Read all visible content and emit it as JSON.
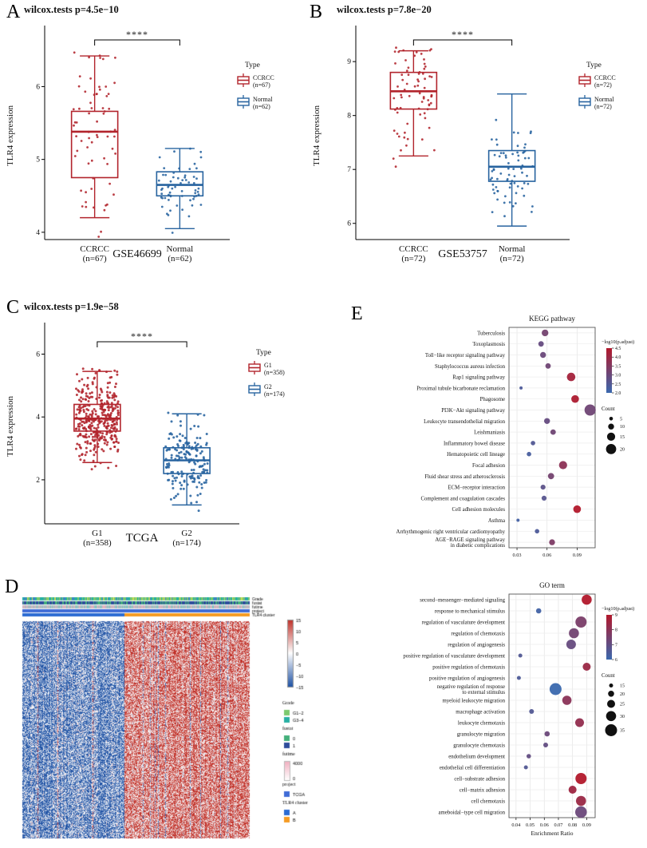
{
  "labels": {
    "A": "A",
    "B": "B",
    "C": "C",
    "D": "D",
    "E": "E"
  },
  "chart_data": [
    {
      "panel": "A",
      "type": "boxplot",
      "title": "wilcox.tests p=4.5e−10",
      "dataset": "GSE46699",
      "ylabel": "TLR4 expression",
      "ylim": [
        3.9,
        6.75
      ],
      "yticks": [
        4,
        5,
        6
      ],
      "significance": "****",
      "legend_title": "Type",
      "groups": [
        {
          "label": "CCRCC",
          "n_label": "(n=67)",
          "count": 67,
          "color": "#b2242c",
          "stats": {
            "low": 4.2,
            "q1": 4.75,
            "median": 5.38,
            "q3": 5.66,
            "high": 6.42
          }
        },
        {
          "label": "Normal",
          "n_label": "(n=62)",
          "count": 62,
          "color": "#27639f",
          "stats": {
            "low": 4.05,
            "q1": 4.5,
            "median": 4.65,
            "q3": 4.83,
            "high": 5.15
          }
        }
      ]
    },
    {
      "panel": "B",
      "type": "boxplot",
      "title": "wilcox.tests p=7.8e−20",
      "dataset": "GSE53757",
      "ylabel": "TLR4 expression",
      "ylim": [
        5.7,
        9.55
      ],
      "yticks": [
        6,
        7,
        8,
        9
      ],
      "significance": "****",
      "legend_title": "Type",
      "groups": [
        {
          "label": "CCRCC",
          "n_label": "(n=72)",
          "count": 72,
          "color": "#b2242c",
          "stats": {
            "low": 7.25,
            "q1": 8.12,
            "median": 8.45,
            "q3": 8.8,
            "high": 9.2
          }
        },
        {
          "label": "Normal",
          "n_label": "(n=72)",
          "count": 72,
          "color": "#27639f",
          "stats": {
            "low": 5.95,
            "q1": 6.78,
            "median": 7.05,
            "q3": 7.35,
            "high": 8.4
          }
        }
      ]
    },
    {
      "panel": "C",
      "type": "boxplot",
      "title": "wilcox.tests p=1.9e−58",
      "dataset": "TCGA",
      "ylabel": "TLR4 expression",
      "ylim": [
        0.6,
        6.8
      ],
      "yticks": [
        2,
        4,
        6
      ],
      "significance": "****",
      "legend_title": "Type",
      "groups": [
        {
          "label": "G1",
          "n_label": "(n=358)",
          "count": 358,
          "color": "#b2242c",
          "stats": {
            "low": 2.55,
            "q1": 3.55,
            "median": 3.95,
            "q3": 4.4,
            "high": 5.45
          }
        },
        {
          "label": "G2",
          "n_label": "(n=174)",
          "count": 174,
          "color": "#27639f",
          "stats": {
            "low": 1.2,
            "q1": 2.2,
            "median": 2.62,
            "q3": 3.02,
            "high": 4.1
          }
        }
      ]
    },
    {
      "panel": "D",
      "type": "heatmap",
      "rows": 272,
      "cols": 285,
      "cluster_split": 0.45,
      "value_range": [
        -15,
        15
      ],
      "colorbar_ticks": [
        "15",
        "10",
        "5",
        "0",
        "−5",
        "−10",
        "−15"
      ],
      "annotation_rows": [
        "Grade",
        "fustat",
        "futime",
        "project",
        "TLR4 cluster"
      ],
      "cluster_colors": {
        "low": "#2053a5",
        "mid": "#ffffff",
        "high": "#c03028"
      },
      "legends": [
        {
          "title": "Grade",
          "entries": [
            {
              "label": "G1−2",
              "color": "#7cc96e"
            },
            {
              "label": "G3−4",
              "color": "#29b0a4"
            }
          ]
        },
        {
          "title": "fustat",
          "entries": [
            {
              "label": "0",
              "color": "#44b07b"
            },
            {
              "label": "1",
              "color": "#2e4c9b"
            }
          ]
        },
        {
          "title": "futime",
          "gradient": [
            "#f2aebf",
            "#ffffff"
          ],
          "gradient_ticks": [
            "4000",
            "0"
          ]
        },
        {
          "title": "project",
          "entries": [
            {
              "label": "TCGA",
              "color": "#3f6bd6"
            }
          ]
        },
        {
          "title": "TLR4 cluster",
          "entries": [
            {
              "label": "A",
              "color": "#2b6bd3"
            },
            {
              "label": "B",
              "color": "#f59b23"
            }
          ]
        }
      ]
    },
    {
      "panel": "E",
      "type": "scatter",
      "title": "KEGG pathway",
      "xlabel": "",
      "xlim": [
        0.022,
        0.108
      ],
      "xticks": [
        "0.03",
        "0.06",
        "0.09"
      ],
      "color_legend": {
        "title": "−log10(p.adjust)",
        "min": 2,
        "max": 4.5,
        "ticks": [
          "4.5",
          "4.0",
          "3.5",
          "3.0",
          "2.5",
          "2.0"
        ]
      },
      "size_legend": {
        "title": "Count",
        "ticks": [
          5,
          10,
          15,
          20
        ],
        "min": 4,
        "max": 22
      },
      "items": [
        {
          "label": "Tuberculosis",
          "x": 0.058,
          "padj": 3.2,
          "count": 12
        },
        {
          "label": "Toxoplasmosis",
          "x": 0.054,
          "padj": 2.9,
          "count": 9
        },
        {
          "label": "Toll−like receptor signaling pathway",
          "x": 0.056,
          "padj": 3.0,
          "count": 10
        },
        {
          "label": "Staphylococcus aureus infection",
          "x": 0.061,
          "padj": 3.1,
          "count": 9
        },
        {
          "label": "Rap1 signaling pathway",
          "x": 0.084,
          "padj": 4.2,
          "count": 16
        },
        {
          "label": "Proximal tubule bicarbonate reclamation",
          "x": 0.034,
          "padj": 2.4,
          "count": 4
        },
        {
          "label": "Phagosome",
          "x": 0.088,
          "padj": 4.4,
          "count": 14
        },
        {
          "label": "PI3K−Akt signaling pathway",
          "x": 0.103,
          "padj": 3.1,
          "count": 22
        },
        {
          "label": "Leukocyte transendothelial migration",
          "x": 0.06,
          "padj": 2.9,
          "count": 10
        },
        {
          "label": "Leishmaniasis",
          "x": 0.066,
          "padj": 3.1,
          "count": 9
        },
        {
          "label": "Inflammatory bowel disease",
          "x": 0.046,
          "padj": 2.5,
          "count": 7
        },
        {
          "label": "Hematopoietic cell lineage",
          "x": 0.042,
          "padj": 2.3,
          "count": 7
        },
        {
          "label": "Focal adhesion",
          "x": 0.076,
          "padj": 3.7,
          "count": 15
        },
        {
          "label": "Fluid shear stress and atherosclerosis",
          "x": 0.064,
          "padj": 3.2,
          "count": 11
        },
        {
          "label": "ECM−receptor interaction",
          "x": 0.056,
          "padj": 2.7,
          "count": 8
        },
        {
          "label": "Complement and coagulation cascades",
          "x": 0.057,
          "padj": 2.6,
          "count": 8
        },
        {
          "label": "Cell adhesion molecules",
          "x": 0.09,
          "padj": 4.5,
          "count": 14
        },
        {
          "label": "Asthma",
          "x": 0.031,
          "padj": 2.2,
          "count": 4
        },
        {
          "label": "Arrhythmogenic right ventricular cardiomyopathy",
          "x": 0.05,
          "padj": 2.4,
          "count": 7
        },
        {
          "label": "AGE−RAGE signaling pathway|in diabetic complications",
          "x": 0.065,
          "padj": 3.4,
          "count": 10
        }
      ]
    },
    {
      "panel": "E",
      "type": "scatter",
      "title": "GO term",
      "xlabel": "Enrichment Ratio",
      "xlim": [
        0.035,
        0.096
      ],
      "xticks": [
        "0.04",
        "0.05",
        "0.06",
        "0.07",
        "0.08",
        "0.09"
      ],
      "color_legend": {
        "title": "−log10(p.adjust)",
        "min": 6,
        "max": 9,
        "ticks": [
          "9",
          "8",
          "7",
          "6"
        ]
      },
      "size_legend": {
        "title": "Count",
        "ticks": [
          15,
          20,
          25,
          30,
          35
        ],
        "min": 15,
        "max": 35
      },
      "items": [
        {
          "label": "second−messenger−mediated signaling",
          "x": 0.09,
          "padj": 9.0,
          "count": 30
        },
        {
          "label": "response to mechanical stimulus",
          "x": 0.056,
          "padj": 6.2,
          "count": 18
        },
        {
          "label": "regulation of vasculature development",
          "x": 0.086,
          "padj": 7.6,
          "count": 33
        },
        {
          "label": "regulation of chemotaxis",
          "x": 0.081,
          "padj": 7.4,
          "count": 30
        },
        {
          "label": "regulation of angiogenesis",
          "x": 0.079,
          "padj": 7.1,
          "count": 29
        },
        {
          "label": "positive regulation of vasculature development",
          "x": 0.043,
          "padj": 6.6,
          "count": 15
        },
        {
          "label": "positive regulation of chemotaxis",
          "x": 0.09,
          "padj": 8.4,
          "count": 25
        },
        {
          "label": "positive regulation of angiogenesis",
          "x": 0.042,
          "padj": 6.5,
          "count": 15
        },
        {
          "label": "negative regulation of response|to external stimulus",
          "x": 0.068,
          "padj": 6.0,
          "count": 35
        },
        {
          "label": "myeloid leukocyte migration",
          "x": 0.076,
          "padj": 8.0,
          "count": 28
        },
        {
          "label": "macrophage activation",
          "x": 0.051,
          "padj": 6.6,
          "count": 17
        },
        {
          "label": "leukocyte chemotaxis",
          "x": 0.085,
          "padj": 8.2,
          "count": 27
        },
        {
          "label": "granulocyte migration",
          "x": 0.062,
          "padj": 7.2,
          "count": 18
        },
        {
          "label": "granulocyte chemotaxis",
          "x": 0.061,
          "padj": 7.0,
          "count": 17
        },
        {
          "label": "endothelium development",
          "x": 0.049,
          "padj": 7.0,
          "count": 16
        },
        {
          "label": "endothelial cell differentiation",
          "x": 0.047,
          "padj": 6.6,
          "count": 15
        },
        {
          "label": "cell−substrate adhesion",
          "x": 0.086,
          "padj": 9.0,
          "count": 33
        },
        {
          "label": "cell−matrix adhesion",
          "x": 0.08,
          "padj": 8.5,
          "count": 25
        },
        {
          "label": "cell chemotaxis",
          "x": 0.086,
          "padj": 8.4,
          "count": 30
        },
        {
          "label": "ameboidal−type cell migration",
          "x": 0.086,
          "padj": 7.2,
          "count": 34
        }
      ]
    }
  ]
}
